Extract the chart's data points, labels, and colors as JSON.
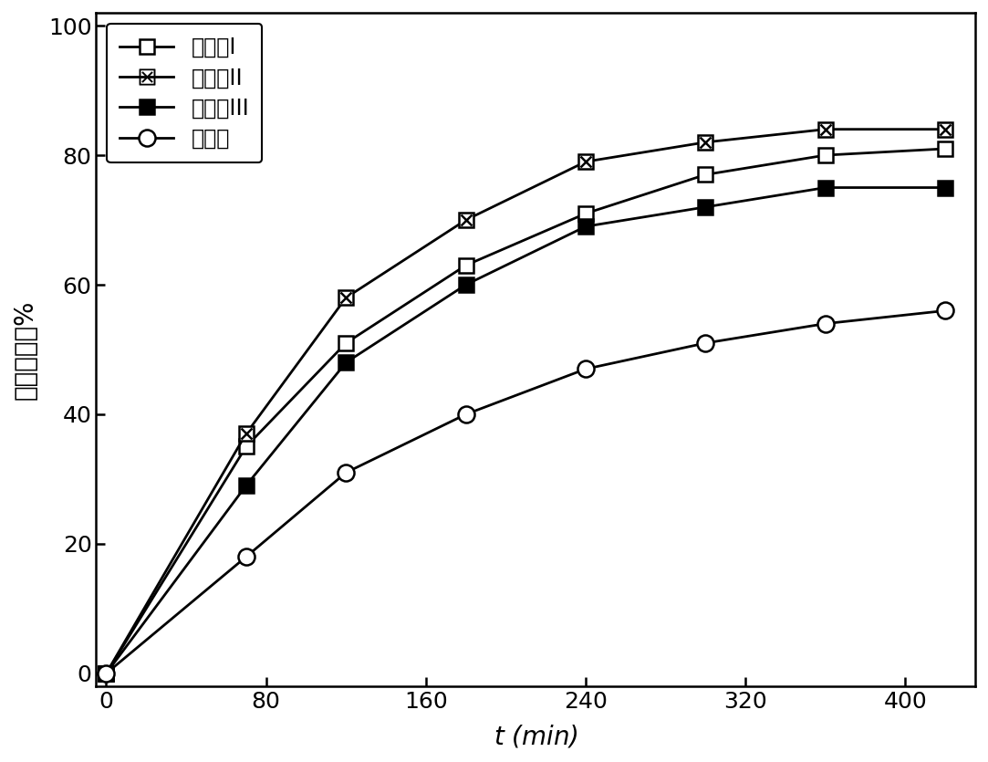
{
  "series_order": [
    "整理剂I",
    "整理剂II",
    "整理剂III",
    "对比例"
  ],
  "series": {
    "整理剂I": {
      "x": [
        0,
        70,
        120,
        180,
        240,
        300,
        360,
        420
      ],
      "y": [
        0,
        35,
        51,
        63,
        71,
        77,
        80,
        81
      ],
      "label": "整理剂I",
      "marker": "square_open"
    },
    "整理剂II": {
      "x": [
        0,
        70,
        120,
        180,
        240,
        300,
        360,
        420
      ],
      "y": [
        0,
        37,
        58,
        70,
        79,
        82,
        84,
        84
      ],
      "label": "整理剂II",
      "marker": "square_cross"
    },
    "整理剂III": {
      "x": [
        0,
        70,
        120,
        180,
        240,
        300,
        360,
        420
      ],
      "y": [
        0,
        29,
        48,
        60,
        69,
        72,
        75,
        75
      ],
      "label": "整理剂III",
      "marker": "square_filled"
    },
    "对比例": {
      "x": [
        0,
        70,
        120,
        180,
        240,
        300,
        360,
        420
      ],
      "y": [
        0,
        18,
        31,
        40,
        47,
        51,
        54,
        56
      ],
      "label": "对比例",
      "marker": "circle_open"
    }
  },
  "xlabel": "$t$ (min)",
  "ylabel": "甲醛去除率%",
  "xlim": [
    -5,
    435
  ],
  "ylim": [
    -2,
    102
  ],
  "xticks": [
    0,
    80,
    160,
    240,
    320,
    400
  ],
  "yticks": [
    0,
    20,
    40,
    60,
    80,
    100
  ],
  "legend_loc": "upper left",
  "figure_size": [
    10.83,
    8.35
  ],
  "dpi": 100,
  "tick_fontsize": 18,
  "label_fontsize": 20,
  "legend_fontsize": 17,
  "line_width": 2.0,
  "marker_size": 11,
  "marker_edge_width": 1.8,
  "background_color": "#ffffff"
}
